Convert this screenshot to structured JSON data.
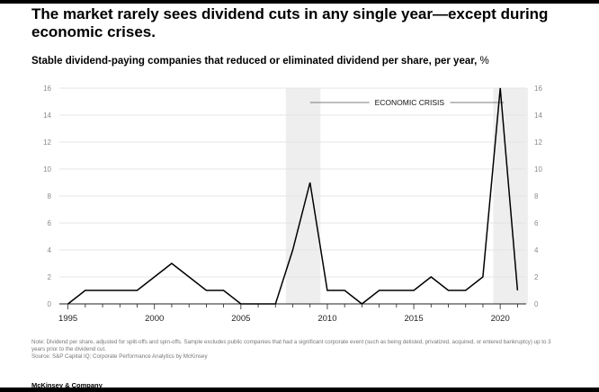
{
  "title": "The market rarely sees dividend cuts in any single year—except during economic crises.",
  "subtitle": "Stable dividend-paying companies that reduced or eliminated dividend per share, per year,",
  "subtitle_unit": "%",
  "note": "Note: Dividend per share, adjusted for split-offs and spin-offs. Sample excludes public companies that had a significant corporate event (such as being delisted, privatized, acquired, or entered bankruptcy) up to 3 years prior to the dividend cut.",
  "source": "Source: S&P Capital IQ; Corporate Performance Analytics by McKinsey",
  "footer": "McKinsey & Company",
  "colors": {
    "line": "#000000",
    "crisis_band": "#eeeeee",
    "grid": "#e4e4e4",
    "tick_label": "#8a8a8a",
    "text": "#000000"
  },
  "chart_data": {
    "type": "line",
    "title": "Stable dividend-paying companies that reduced or eliminated dividend per share, per year, %",
    "xlabel": "",
    "ylabel": "%",
    "x": [
      1995,
      1996,
      1997,
      1998,
      1999,
      2000,
      2001,
      2002,
      2003,
      2004,
      2005,
      2006,
      2007,
      2008,
      2009,
      2010,
      2011,
      2012,
      2013,
      2014,
      2015,
      2016,
      2017,
      2018,
      2019,
      2020,
      2021
    ],
    "values": [
      0,
      1,
      1,
      1,
      1,
      2,
      3,
      2,
      1,
      1,
      0,
      0,
      0,
      4,
      9,
      1,
      1,
      0,
      1,
      1,
      1,
      2,
      1,
      1,
      2,
      16,
      1
    ],
    "xlim": [
      1994.5,
      2021.5
    ],
    "ylim": [
      0,
      16
    ],
    "x_tick_labels": [
      "1995",
      "2000",
      "2005",
      "2010",
      "2015",
      "2020"
    ],
    "y_tick_labels": [
      "0",
      "2",
      "4",
      "6",
      "8",
      "10",
      "12",
      "14",
      "16"
    ],
    "grid": true,
    "crisis_periods": [
      {
        "start": 2007.6,
        "end": 2009.6
      },
      {
        "start": 2019.6,
        "end": 2021.6
      }
    ],
    "annotation": "ECONOMIC CRISIS"
  }
}
